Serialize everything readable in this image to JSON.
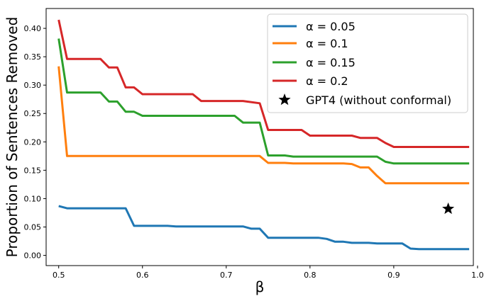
{
  "chart_data": {
    "type": "line",
    "xlabel": "β",
    "ylabel": "Proportion of Sentences Removed",
    "xlim": [
      0.485,
      0.995
    ],
    "ylim": [
      -0.018,
      0.435
    ],
    "xticks": [
      0.5,
      0.6,
      0.7,
      0.8,
      0.9,
      1.0
    ],
    "xtick_labels": [
      "0.5",
      "0.6",
      "0.7",
      "0.8",
      "0.9",
      "1.0"
    ],
    "yticks": [
      0.0,
      0.05,
      0.1,
      0.15,
      0.2,
      0.25,
      0.3,
      0.35,
      0.4
    ],
    "ytick_labels": [
      "0.00",
      "0.05",
      "0.10",
      "0.15",
      "0.20",
      "0.25",
      "0.30",
      "0.35",
      "0.40"
    ],
    "grid": false,
    "legend_position": "top-right",
    "series": [
      {
        "name": "α = 0.05",
        "color": "#1f77b4",
        "x": [
          0.5,
          0.51,
          0.58,
          0.59,
          0.63,
          0.64,
          0.72,
          0.73,
          0.74,
          0.75,
          0.81,
          0.82,
          0.83,
          0.84,
          0.85,
          0.87,
          0.88,
          0.91,
          0.92,
          0.93,
          0.99
        ],
        "y": [
          0.087,
          0.083,
          0.083,
          0.052,
          0.052,
          0.051,
          0.051,
          0.047,
          0.047,
          0.031,
          0.031,
          0.029,
          0.024,
          0.024,
          0.022,
          0.022,
          0.021,
          0.021,
          0.012,
          0.011,
          0.011
        ]
      },
      {
        "name": "α = 0.1",
        "color": "#ff7f0e",
        "x": [
          0.5,
          0.51,
          0.74,
          0.75,
          0.77,
          0.78,
          0.84,
          0.85,
          0.86,
          0.87,
          0.88,
          0.89,
          0.99
        ],
        "y": [
          0.333,
          0.175,
          0.175,
          0.163,
          0.163,
          0.162,
          0.162,
          0.161,
          0.155,
          0.155,
          0.14,
          0.127,
          0.127
        ]
      },
      {
        "name": "α = 0.15",
        "color": "#2ca02c",
        "x": [
          0.5,
          0.51,
          0.55,
          0.56,
          0.57,
          0.58,
          0.59,
          0.6,
          0.71,
          0.72,
          0.74,
          0.75,
          0.77,
          0.78,
          0.88,
          0.89,
          0.9,
          0.99
        ],
        "y": [
          0.382,
          0.287,
          0.287,
          0.271,
          0.271,
          0.253,
          0.253,
          0.246,
          0.246,
          0.234,
          0.234,
          0.176,
          0.176,
          0.174,
          0.174,
          0.165,
          0.162,
          0.162
        ]
      },
      {
        "name": "α = 0.2",
        "color": "#d62728",
        "x": [
          0.5,
          0.51,
          0.55,
          0.56,
          0.57,
          0.58,
          0.59,
          0.6,
          0.66,
          0.67,
          0.72,
          0.74,
          0.75,
          0.79,
          0.8,
          0.85,
          0.86,
          0.88,
          0.89,
          0.9,
          0.99
        ],
        "y": [
          0.415,
          0.346,
          0.346,
          0.331,
          0.331,
          0.296,
          0.296,
          0.284,
          0.284,
          0.272,
          0.272,
          0.268,
          0.221,
          0.221,
          0.211,
          0.211,
          0.207,
          0.207,
          0.198,
          0.191,
          0.191
        ]
      }
    ],
    "points": [
      {
        "name": "GPT4 (without conformal)",
        "marker": "star",
        "color": "#000000",
        "x": 0.965,
        "y": 0.082
      }
    ]
  }
}
